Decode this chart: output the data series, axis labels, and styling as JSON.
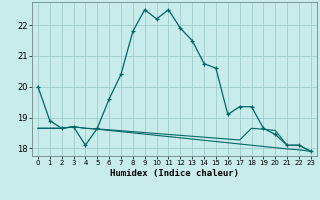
{
  "title": "",
  "xlabel": "Humidex (Indice chaleur)",
  "bg_color": "#c8ecec",
  "grid_color": "#a0cccc",
  "line_color": "#006666",
  "x_values": [
    0,
    1,
    2,
    3,
    4,
    5,
    6,
    7,
    8,
    9,
    10,
    11,
    12,
    13,
    14,
    15,
    16,
    17,
    18,
    19,
    20,
    21,
    22,
    23
  ],
  "line1_y": [
    20.0,
    18.9,
    18.65,
    18.7,
    18.1,
    18.65,
    19.6,
    20.4,
    21.8,
    22.5,
    22.2,
    22.5,
    21.9,
    21.5,
    20.75,
    20.6,
    19.1,
    19.35,
    19.35,
    18.65,
    18.45,
    18.1,
    18.1,
    17.9
  ],
  "line2_y": [
    18.65,
    18.65,
    18.65,
    18.7,
    18.65,
    18.62,
    18.58,
    18.54,
    18.5,
    18.46,
    18.42,
    18.38,
    18.34,
    18.3,
    18.26,
    18.22,
    18.18,
    18.14,
    18.1,
    18.06,
    18.02,
    17.98,
    17.95,
    17.9
  ],
  "line3_y": [
    18.65,
    18.65,
    18.65,
    18.7,
    18.65,
    18.63,
    18.6,
    18.57,
    18.54,
    18.51,
    18.48,
    18.45,
    18.42,
    18.39,
    18.36,
    18.33,
    18.3,
    18.27,
    18.65,
    18.62,
    18.58,
    18.1,
    18.1,
    17.9
  ],
  "ylim": [
    17.75,
    22.75
  ],
  "xlim": [
    -0.5,
    23.5
  ],
  "yticks": [
    18,
    19,
    20,
    21,
    22
  ],
  "xticks": [
    0,
    1,
    2,
    3,
    4,
    5,
    6,
    7,
    8,
    9,
    10,
    11,
    12,
    13,
    14,
    15,
    16,
    17,
    18,
    19,
    20,
    21,
    22,
    23
  ]
}
